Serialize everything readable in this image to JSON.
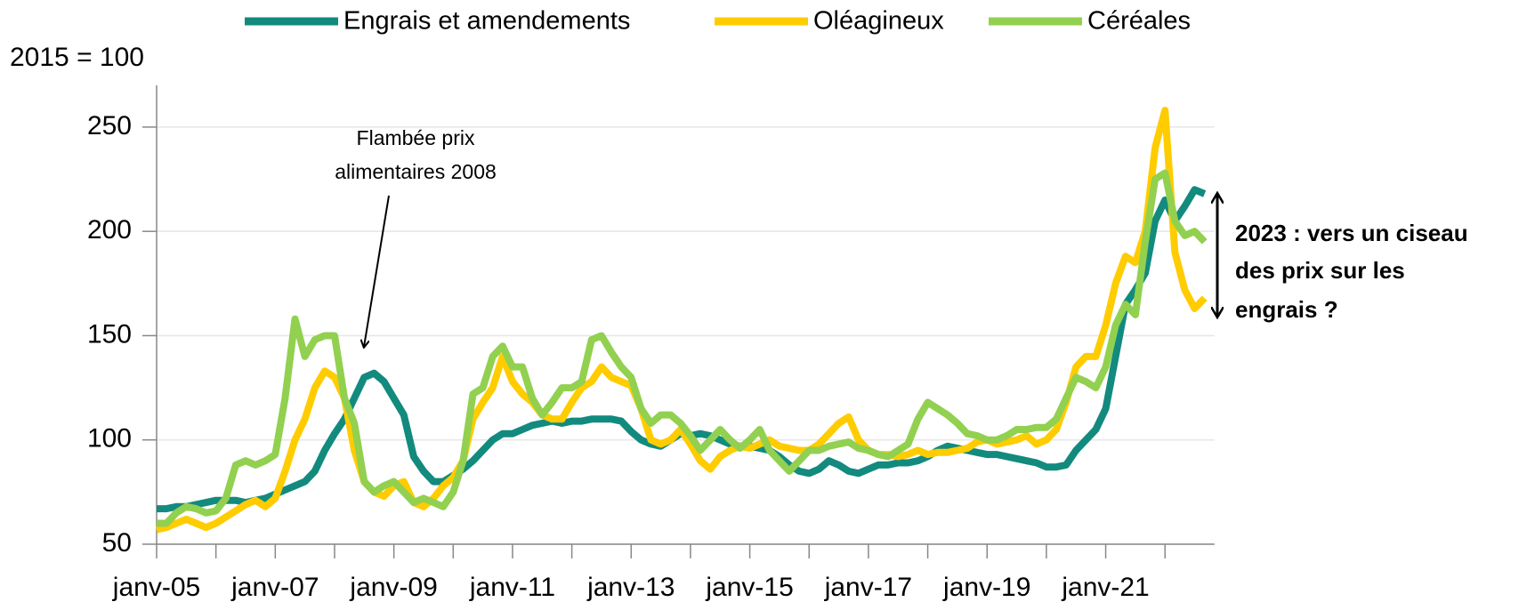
{
  "chart_data": {
    "type": "line",
    "y_label": "2015 = 100",
    "categories": [
      "janv-05",
      null,
      null,
      null,
      null,
      null,
      null,
      null,
      null,
      null,
      null,
      null,
      "janv-07",
      null,
      null,
      null,
      null,
      null,
      null,
      null,
      null,
      null,
      null,
      null,
      "janv-09",
      null,
      null,
      null,
      null,
      null,
      null,
      null,
      null,
      null,
      null,
      null,
      "janv-11",
      null,
      null,
      null,
      null,
      null,
      null,
      null,
      null,
      null,
      null,
      null,
      "janv-13",
      null,
      null,
      null,
      null,
      null,
      null,
      null,
      null,
      null,
      null,
      null,
      "janv-15",
      null,
      null,
      null,
      null,
      null,
      null,
      null,
      null,
      null,
      null,
      null,
      "janv-17",
      null,
      null,
      null,
      null,
      null,
      null,
      null,
      null,
      null,
      null,
      null,
      "janv-19",
      null,
      null,
      null,
      null,
      null,
      null,
      null,
      null,
      null,
      null,
      null,
      "janv-21",
      null,
      null,
      null,
      null,
      null,
      null,
      null,
      null,
      null,
      null
    ],
    "series": [
      {
        "name": "Engrais et amendements",
        "color": "#138a7e",
        "values": [
          67,
          67,
          68,
          68,
          69,
          70,
          71,
          71,
          71,
          70,
          71,
          72,
          74,
          76,
          78,
          80,
          85,
          95,
          103,
          110,
          120,
          130,
          132,
          128,
          120,
          112,
          92,
          85,
          80,
          80,
          83,
          86,
          90,
          95,
          100,
          103,
          103,
          105,
          107,
          108,
          109,
          108,
          109,
          109,
          110,
          110,
          110,
          109,
          104,
          100,
          98,
          97,
          100,
          103,
          102,
          103,
          102,
          100,
          98,
          97,
          97,
          96,
          95,
          92,
          88,
          85,
          84,
          86,
          90,
          88,
          85,
          84,
          86,
          88,
          88,
          89,
          89,
          90,
          92,
          95,
          97,
          96,
          95,
          94,
          93,
          93,
          92,
          91,
          90,
          89,
          87,
          87,
          88,
          95,
          100,
          105,
          115,
          140,
          165,
          172,
          180,
          205,
          215,
          205,
          212,
          220,
          218
        ]
      },
      {
        "name": "Oléagineux",
        "color": "#ffcc00",
        "values": [
          57,
          58,
          60,
          62,
          60,
          58,
          60,
          63,
          66,
          69,
          71,
          68,
          72,
          85,
          100,
          110,
          125,
          133,
          130,
          120,
          95,
          80,
          75,
          73,
          78,
          80,
          70,
          68,
          72,
          78,
          82,
          90,
          110,
          118,
          125,
          140,
          128,
          122,
          118,
          112,
          110,
          110,
          118,
          125,
          128,
          135,
          130,
          128,
          126,
          115,
          100,
          98,
          100,
          105,
          98,
          90,
          86,
          92,
          95,
          97,
          96,
          98,
          100,
          97,
          96,
          95,
          95,
          98,
          103,
          108,
          111,
          100,
          95,
          93,
          93,
          92,
          93,
          95,
          93,
          94,
          94,
          95,
          96,
          99,
          100,
          98,
          99,
          100,
          102,
          98,
          100,
          105,
          118,
          135,
          140,
          140,
          155,
          175,
          188,
          185,
          200,
          240,
          258,
          190,
          172,
          163,
          168
        ]
      },
      {
        "name": "Céréales",
        "color": "#92d050",
        "values": [
          60,
          60,
          65,
          68,
          67,
          65,
          66,
          72,
          88,
          90,
          88,
          90,
          93,
          120,
          158,
          140,
          148,
          150,
          150,
          120,
          108,
          80,
          75,
          78,
          80,
          75,
          70,
          72,
          70,
          68,
          75,
          90,
          122,
          125,
          140,
          145,
          135,
          135,
          120,
          112,
          118,
          125,
          125,
          128,
          148,
          150,
          142,
          135,
          130,
          115,
          108,
          112,
          112,
          108,
          102,
          95,
          100,
          105,
          100,
          96,
          100,
          105,
          95,
          90,
          85,
          90,
          95,
          95,
          97,
          98,
          99,
          96,
          95,
          93,
          92,
          95,
          98,
          110,
          118,
          115,
          112,
          108,
          103,
          102,
          100,
          100,
          102,
          105,
          105,
          106,
          106,
          110,
          120,
          130,
          128,
          125,
          135,
          155,
          165,
          160,
          195,
          225,
          228,
          205,
          198,
          200,
          195
        ]
      }
    ],
    "ylim": [
      50,
      270
    ],
    "yticks": [
      50,
      100,
      150,
      200,
      250
    ],
    "grid": true,
    "legend": "top",
    "annotations": [
      {
        "text": [
          "Flambée prix",
          "alimentaires 2008"
        ]
      },
      {
        "text": [
          "2023 : vers un ciseau",
          "des prix sur les",
          "engrais ?"
        ]
      }
    ]
  }
}
